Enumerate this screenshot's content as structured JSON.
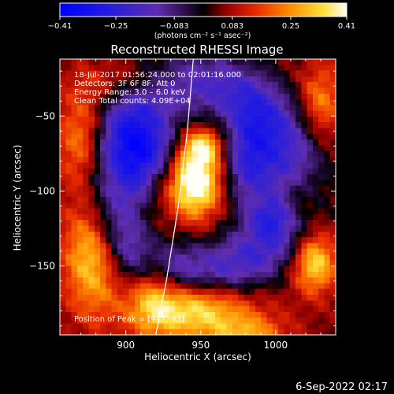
{
  "chart_data": {
    "type": "heatmap",
    "title": "Reconstructed RHESSI Image",
    "xlabel": "Heliocentric X (arcsec)",
    "ylabel": "Heliocentric Y (arcsec)",
    "xlim": [
      856,
      1040
    ],
    "ylim": [
      -196,
      -12
    ],
    "x_ticks": [
      900,
      950,
      1000
    ],
    "x_tick_labels": [
      "900",
      "950",
      "1000"
    ],
    "y_ticks": [
      -50,
      -100,
      -150
    ],
    "y_tick_labels": [
      "−50",
      "−100",
      "−150"
    ],
    "colorbar": {
      "range": [
        -0.41,
        0.41
      ],
      "ticks": [
        -0.41,
        -0.25,
        -0.083,
        0.083,
        0.25,
        0.41
      ],
      "tick_labels": [
        "−0.41",
        "−0.25",
        "−0.083",
        "0.083",
        "0.25",
        "0.41"
      ],
      "unit_label": "(photons cm⁻² s⁻¹ asec⁻²)"
    },
    "info_lines": [
      "18-Jul-2017 01:56:24.000 to 02:01:16.000",
      "Detectors: 3F 6F 8F, Att 0",
      "Energy Range: 3.0 – 6.0 keV",
      "Clean    Total counts: 4.09E+04"
    ],
    "peak_text": "Position of Peak = [947,-93]",
    "peak_position": [
      947,
      -93
    ],
    "limb_curve": [
      [
        945,
        -12
      ],
      [
        941,
        -60
      ],
      [
        935,
        -110
      ],
      [
        927,
        -160
      ],
      [
        920,
        -196
      ]
    ],
    "sources": [
      {
        "type": "blob",
        "x": 946,
        "y": -93,
        "sx": 12,
        "sy": 17,
        "amp": 0.44
      },
      {
        "type": "blob",
        "x": 952,
        "y": -70,
        "sx": 9,
        "sy": 8,
        "amp": 0.22
      },
      {
        "type": "blob",
        "x": 943,
        "y": -178,
        "sx": 28,
        "sy": 14,
        "amp": 0.36
      },
      {
        "type": "blob",
        "x": 918,
        "y": -160,
        "sx": 10,
        "sy": 24,
        "amp": 0.16
      },
      {
        "type": "blob",
        "x": 872,
        "y": -70,
        "sx": 12,
        "sy": 24,
        "amp": 0.26
      },
      {
        "type": "blob",
        "x": 877,
        "y": -140,
        "sx": 13,
        "sy": 28,
        "amp": 0.3
      },
      {
        "type": "blob",
        "x": 1026,
        "y": -148,
        "sx": 10,
        "sy": 14,
        "amp": 0.3
      },
      {
        "type": "blob",
        "x": 1015,
        "y": -105,
        "sx": 10,
        "sy": 14,
        "amp": 0.17
      },
      {
        "type": "blob",
        "x": 1030,
        "y": -40,
        "sx": 10,
        "sy": 18,
        "amp": 0.18
      },
      {
        "type": "blob",
        "x": 910,
        "y": -28,
        "sx": 26,
        "sy": 10,
        "amp": 0.12
      },
      {
        "type": "blob",
        "x": 982,
        "y": -196,
        "sx": 18,
        "sy": 9,
        "amp": 0.18
      },
      {
        "type": "blob",
        "x": 913,
        "y": -72,
        "sx": 15,
        "sy": 15,
        "amp": -0.32
      },
      {
        "type": "blob",
        "x": 906,
        "y": -95,
        "sx": 9,
        "sy": 12,
        "amp": -0.12
      },
      {
        "type": "blob",
        "x": 982,
        "y": -78,
        "sx": 12,
        "sy": 22,
        "amp": -0.28
      },
      {
        "type": "blob",
        "x": 995,
        "y": -118,
        "sx": 10,
        "sy": 8,
        "amp": -0.1
      },
      {
        "type": "ring",
        "x": 948,
        "y": -92,
        "r": 63,
        "w": 15,
        "amp": -0.26
      }
    ],
    "baseline": 0.05,
    "grid": false
  },
  "footer_text": "6-Sep-2022 02:17",
  "colors": {
    "background": "#000000",
    "text": "#ffffff"
  }
}
